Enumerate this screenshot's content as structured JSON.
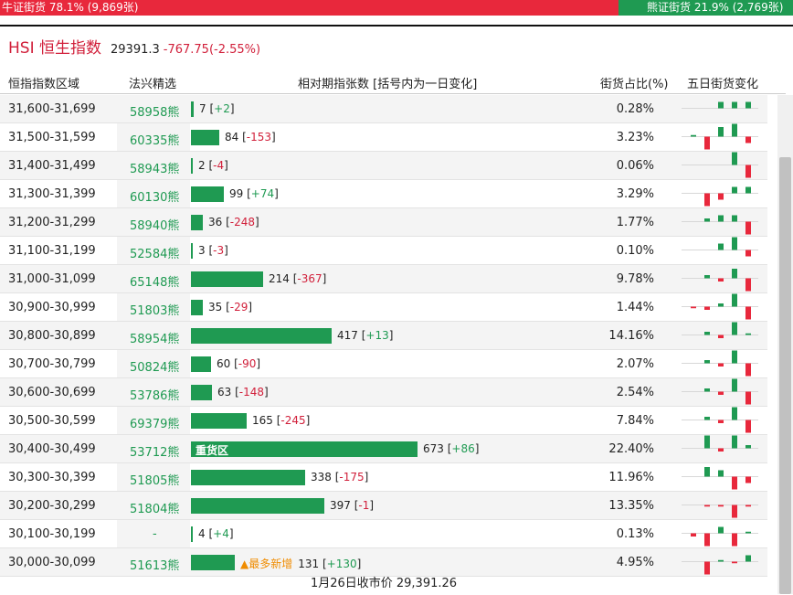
{
  "ratio": {
    "bull_label": "牛证街货 78.1% (9,869张)",
    "bull_fraction": 0.781,
    "bear_label": "熊证街货 21.9% (2,769张)",
    "colors": {
      "bull": "#e8283c",
      "bear": "#1f9a52"
    }
  },
  "index": {
    "name": "HSI 恒生指数",
    "price": "29391.3",
    "change": "-767.75(-2.55%)"
  },
  "columns": {
    "range": "恒指指数区域",
    "code": "法兴精选",
    "bars": "相对期指张数 [括号内为一日变化]",
    "pct": "街货占比(%)",
    "five_day": "五日街货变化"
  },
  "rows": [
    {
      "range": "31,600-31,699",
      "code": "58958熊",
      "count": 7,
      "count_text": "7",
      "change": "+2",
      "pct": "0.28%",
      "spark": [
        0,
        0,
        2,
        2,
        2
      ]
    },
    {
      "range": "31,500-31,599",
      "code": "60335熊",
      "count": 84,
      "count_text": "84",
      "change": "-153",
      "pct": "3.23%",
      "spark": [
        0.5,
        -4,
        3,
        4,
        -2
      ]
    },
    {
      "range": "31,400-31,499",
      "code": "58943熊",
      "count": 2,
      "count_text": "2",
      "change": "-4",
      "pct": "0.06%",
      "spark": [
        0,
        0,
        0,
        4,
        -4
      ]
    },
    {
      "range": "31,300-31,399",
      "code": "60130熊",
      "count": 99,
      "count_text": "99",
      "change": "+74",
      "pct": "3.29%",
      "spark": [
        0,
        -4,
        -2,
        2,
        2
      ]
    },
    {
      "range": "31,200-31,299",
      "code": "58940熊",
      "count": 36,
      "count_text": "36",
      "change": "-248",
      "pct": "1.77%",
      "spark": [
        0,
        1,
        2,
        2,
        -4
      ]
    },
    {
      "range": "31,100-31,199",
      "code": "52584熊",
      "count": 3,
      "count_text": "3",
      "change": "-3",
      "pct": "0.10%",
      "spark": [
        0,
        0,
        2,
        4,
        -2
      ]
    },
    {
      "range": "31,000-31,099",
      "code": "65148熊",
      "count": 214,
      "count_text": "214",
      "change": "-367",
      "pct": "9.78%",
      "spark": [
        0,
        1,
        -1,
        3,
        -4
      ]
    },
    {
      "range": "30,900-30,999",
      "code": "51803熊",
      "count": 35,
      "count_text": "35",
      "change": "-29",
      "pct": "1.44%",
      "spark": [
        -0.5,
        -1,
        1,
        4,
        -4
      ]
    },
    {
      "range": "30,800-30,899",
      "code": "58954熊",
      "count": 417,
      "count_text": "417",
      "change": "+13",
      "pct": "14.16%",
      "spark": [
        0,
        1,
        -1,
        4,
        0.5
      ]
    },
    {
      "range": "30,700-30,799",
      "code": "50824熊",
      "count": 60,
      "count_text": "60",
      "change": "-90",
      "pct": "2.07%",
      "spark": [
        0,
        1,
        -1,
        4,
        -4
      ]
    },
    {
      "range": "30,600-30,699",
      "code": "53786熊",
      "count": 63,
      "count_text": "63",
      "change": "-148",
      "pct": "2.54%",
      "spark": [
        0,
        1,
        -1,
        4,
        -4
      ]
    },
    {
      "range": "30,500-30,599",
      "code": "69379熊",
      "count": 165,
      "count_text": "165",
      "change": "-245",
      "pct": "7.84%",
      "spark": [
        0,
        1,
        -1,
        4,
        -4
      ]
    },
    {
      "range": "30,400-30,499",
      "code": "53712熊",
      "count": 673,
      "count_text": "673",
      "change": "+86",
      "pct": "22.40%",
      "spark": [
        0,
        4,
        -1,
        4,
        1
      ],
      "highlight": "重货区"
    },
    {
      "range": "30,300-30,399",
      "code": "51805熊",
      "count": 338,
      "count_text": "338",
      "change": "-175",
      "pct": "11.96%",
      "spark": [
        0,
        3,
        2,
        -4,
        -2
      ]
    },
    {
      "range": "30,200-30,299",
      "code": "51804熊",
      "count": 397,
      "count_text": "397",
      "change": "-1",
      "pct": "13.35%",
      "spark": [
        0,
        -0.5,
        -0.5,
        -4,
        -0.5
      ]
    },
    {
      "range": "30,100-30,199",
      "code": "-",
      "count": 4,
      "count_text": "4",
      "change": "+4",
      "pct": "0.13%",
      "spark": [
        -1,
        -4,
        2,
        -4,
        0.5
      ]
    },
    {
      "range": "30,000-30,099",
      "code": "51613熊",
      "count": 131,
      "count_text": "131",
      "change": "+130",
      "pct": "4.95%",
      "spark": [
        0,
        -4,
        0.5,
        -0.5,
        2
      ],
      "note": "▲最多新增"
    }
  ],
  "bar_max_count": 673,
  "footer": "1月26日收市价 29,391.26"
}
